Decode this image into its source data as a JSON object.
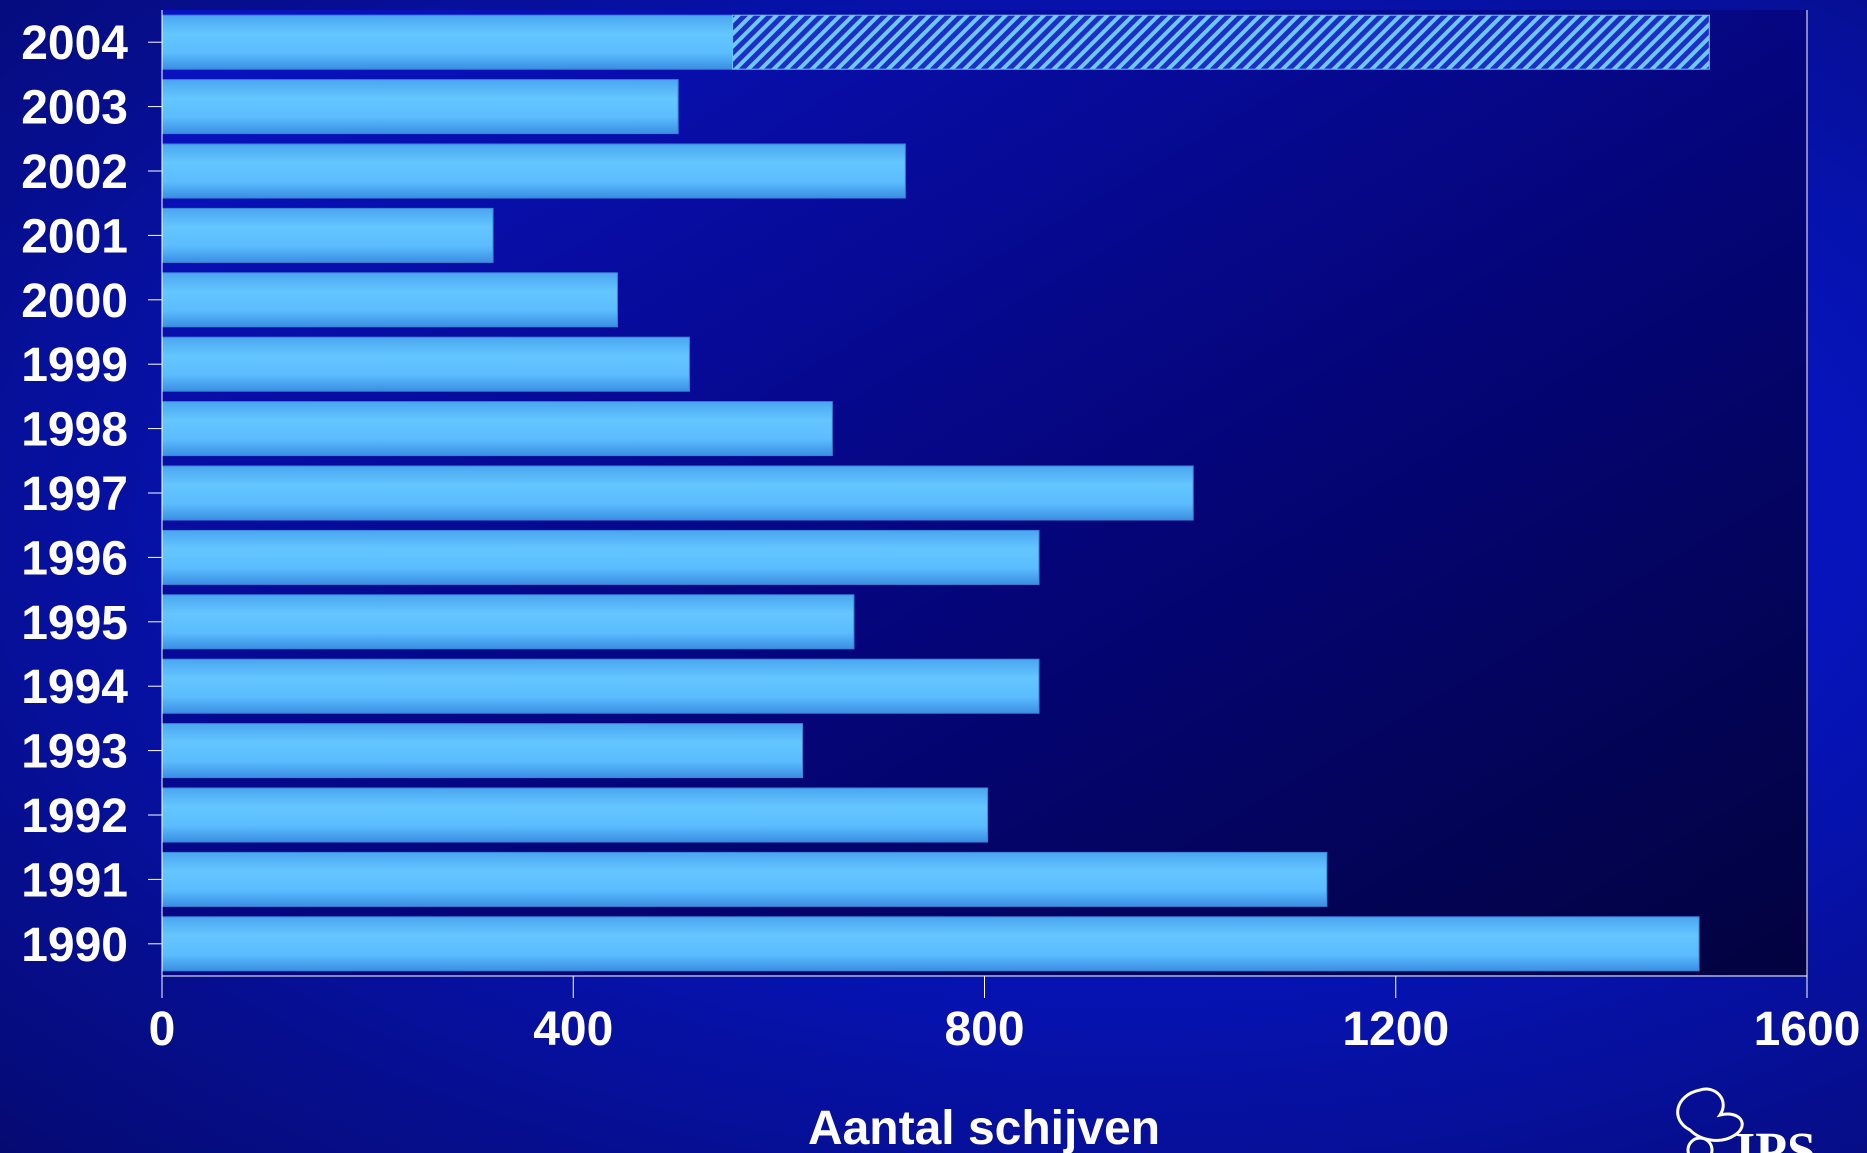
{
  "chart_data": {
    "type": "bar",
    "orientation": "horizontal",
    "categories": [
      "2004",
      "2003",
      "2002",
      "2001",
      "2000",
      "1999",
      "1998",
      "1997",
      "1996",
      "1995",
      "1994",
      "1993",
      "1992",
      "1991",
      "1990"
    ],
    "series": [
      {
        "values": [
          555,
          502,
          723,
          322,
          443,
          513,
          652,
          1003,
          853,
          673,
          853,
          623,
          803,
          1133,
          1495
        ]
      },
      {
        "values": [
          950,
          0,
          0,
          0,
          0,
          0,
          0,
          0,
          0,
          0,
          0,
          0,
          0,
          0,
          0
        ]
      }
    ],
    "xlabel": "Aantal schijven",
    "xlim": [
      0,
      1600
    ],
    "xticks": [
      "0",
      "400",
      "800",
      "1200",
      "1600"
    ],
    "grid": false,
    "legend": "none",
    "colors": {
      "bar": "#5fbfff",
      "bar_shade": "#3f93e8",
      "hatch": "#5fbfff",
      "plot_bg": "#03035e",
      "axis": "#ffffff"
    }
  },
  "logo": {
    "text": "IPS",
    "icon": "ips-leaf-logo-icon"
  }
}
